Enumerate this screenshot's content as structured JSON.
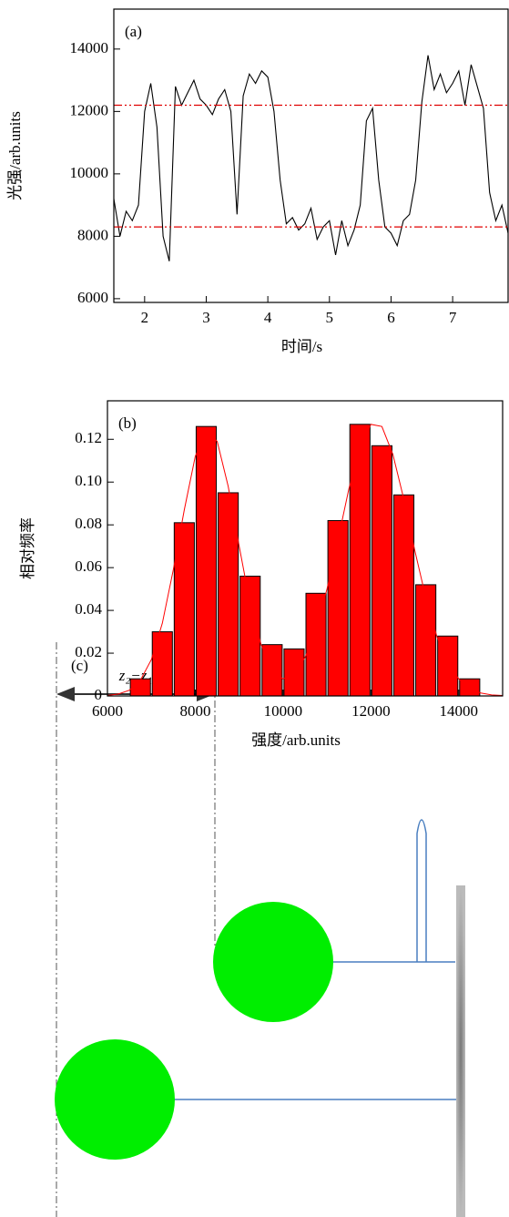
{
  "chart_data": [
    {
      "type": "line",
      "annotation": "(a)",
      "xlabel": "时间/s",
      "ylabel": "光强/arb.units",
      "x": [
        1.5,
        1.6,
        1.7,
        1.8,
        1.9,
        2.0,
        2.1,
        2.2,
        2.3,
        2.4,
        2.5,
        2.6,
        2.7,
        2.8,
        2.9,
        3.0,
        3.1,
        3.2,
        3.3,
        3.4,
        3.5,
        3.6,
        3.7,
        3.8,
        3.9,
        4.0,
        4.1,
        4.2,
        4.3,
        4.4,
        4.5,
        4.6,
        4.7,
        4.8,
        4.9,
        5.0,
        5.1,
        5.2,
        5.3,
        5.4,
        5.5,
        5.6,
        5.7,
        5.8,
        5.9,
        6.0,
        6.1,
        6.2,
        6.3,
        6.4,
        6.5,
        6.6,
        6.7,
        6.8,
        6.9,
        7.0,
        7.1,
        7.2,
        7.3,
        7.4,
        7.5,
        7.6,
        7.7,
        7.8,
        7.9
      ],
      "values": [
        9200,
        8000,
        8800,
        8500,
        9000,
        12000,
        12900,
        11500,
        8000,
        7200,
        12800,
        12200,
        12600,
        13000,
        12400,
        12200,
        11900,
        12400,
        12700,
        12000,
        8700,
        12500,
        13200,
        12900,
        13300,
        13100,
        12000,
        9800,
        8400,
        8600,
        8200,
        8400,
        8900,
        7900,
        8300,
        8500,
        7400,
        8500,
        7700,
        8200,
        9000,
        11700,
        12100,
        9800,
        8300,
        8100,
        7700,
        8500,
        8700,
        9800,
        12300,
        13800,
        12700,
        13200,
        12600,
        12900,
        13300,
        12200,
        13500,
        12800,
        12100,
        9400,
        8500,
        9000,
        8100
      ],
      "color": "#000000",
      "reference_lines": [
        12200,
        8300
      ],
      "reference_color": "#e00000",
      "xlim": [
        1.5,
        7.9
      ],
      "xticks": [
        2,
        3,
        4,
        5,
        6,
        7
      ],
      "ylim": [
        5880,
        15280
      ],
      "yticks": [
        6000,
        8000,
        10000,
        12000,
        14000
      ]
    },
    {
      "type": "histogram",
      "annotation": "(b)",
      "xlabel": "强度/arb.units",
      "ylabel": "相对频率",
      "bins": [
        6500,
        7000,
        7500,
        8000,
        8500,
        9000,
        9500,
        10000,
        10500,
        11000,
        11500,
        12000,
        12500,
        13000,
        13500,
        14000,
        14500
      ],
      "values": [
        0.008,
        0.03,
        0.081,
        0.126,
        0.095,
        0.056,
        0.024,
        0.022,
        0.048,
        0.082,
        0.127,
        0.117,
        0.094,
        0.052,
        0.028,
        0.008
      ],
      "color": "#ff0000",
      "curve": {
        "color": "#ff0000",
        "x": [
          6000,
          6250,
          6500,
          6750,
          7000,
          7250,
          7500,
          7750,
          8000,
          8250,
          8500,
          8750,
          9000,
          9250,
          9500,
          9750,
          10000,
          10250,
          10500,
          10750,
          11000,
          11250,
          11500,
          11750,
          12000,
          12250,
          12500,
          12750,
          13000,
          13250,
          13500,
          13750,
          14000,
          14250,
          14500,
          14750,
          15000
        ],
        "values": [
          0.0002,
          0.0009,
          0.0027,
          0.0073,
          0.017,
          0.034,
          0.059,
          0.087,
          0.112,
          0.124,
          0.119,
          0.098,
          0.07,
          0.043,
          0.024,
          0.012,
          0.008,
          0.01,
          0.018,
          0.031,
          0.05,
          0.073,
          0.097,
          0.116,
          0.127,
          0.126,
          0.113,
          0.092,
          0.068,
          0.046,
          0.028,
          0.015,
          0.008,
          0.0035,
          0.0014,
          0.0005,
          0.0002
        ]
      },
      "xlim": [
        6000,
        15000
      ],
      "xticks": [
        6000,
        8000,
        10000,
        12000,
        14000
      ],
      "ylim": [
        0,
        0.138
      ],
      "yticks": [
        0,
        0.02,
        0.04,
        0.06,
        0.08,
        {
          "value": 0.1,
          "label": "0.10"
        },
        0.12
      ]
    }
  ],
  "diagram": {
    "label": "(c)",
    "dimension": "z₂−z₁"
  }
}
